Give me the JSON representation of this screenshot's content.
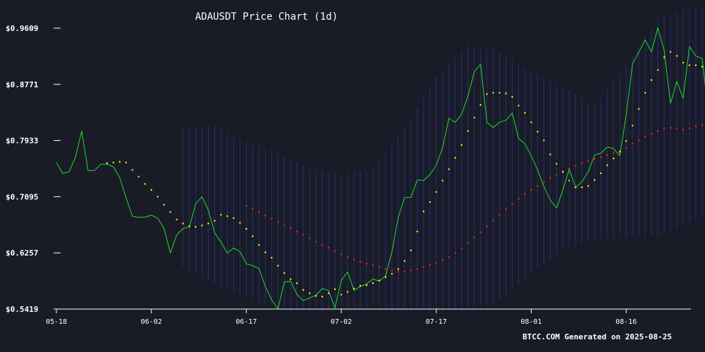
{
  "chart_data": {
    "type": "line",
    "title": "ADAUSDT Price Chart (1d)",
    "footer": "BTCC.COM Generated on 2025-08-25",
    "xlabel": "",
    "ylabel": "",
    "x_start": "05-18",
    "x_ticks": [
      {
        "label": "05-18",
        "index": 0
      },
      {
        "label": "06-02",
        "index": 15
      },
      {
        "label": "06-17",
        "index": 30
      },
      {
        "label": "07-02",
        "index": 45
      },
      {
        "label": "07-17",
        "index": 60
      },
      {
        "label": "08-01",
        "index": 75
      },
      {
        "label": "08-16",
        "index": 90
      }
    ],
    "y_ticks": [
      "$0.5419",
      "$0.6257",
      "$0.7095",
      "$0.7933",
      "$0.8771",
      "$0.9609"
    ],
    "ylim": [
      0.5419,
      0.9609
    ],
    "x_count": 100,
    "grid": false,
    "colors": {
      "background": "#191c27",
      "price": "#22dd22",
      "sar": "#ffff00",
      "ma": "#ff2222",
      "bands": "#2a2f8a"
    },
    "series": [
      {
        "key": "price",
        "values": [
          0.7605,
          0.744,
          0.747,
          0.768,
          0.8075,
          0.7485,
          0.7485,
          0.758,
          0.758,
          0.754,
          0.738,
          0.708,
          0.6805,
          0.6785,
          0.679,
          0.682,
          0.6775,
          0.662,
          0.6255,
          0.6525,
          0.662,
          0.6645,
          0.699,
          0.7095,
          0.6895,
          0.6555,
          0.6415,
          0.6255,
          0.633,
          0.6275,
          0.6095,
          0.6065,
          0.6025,
          0.5755,
          0.5555,
          0.5425,
          0.582,
          0.5835,
          0.5635,
          0.5545,
          0.5585,
          0.5625,
          0.5725,
          0.5695,
          0.5435,
          0.5845,
          0.5975,
          0.5695,
          0.5755,
          0.5795,
          0.5865,
          0.5835,
          0.5915,
          0.6275,
          0.6785,
          0.7085,
          0.7085,
          0.7345,
          0.7335,
          0.7425,
          0.7565,
          0.7825,
          0.8265,
          0.8205,
          0.8325,
          0.8595,
          0.8955,
          0.9075,
          0.8205,
          0.8125,
          0.8205,
          0.8235,
          0.8345,
          0.7965,
          0.7885,
          0.7705,
          0.7495,
          0.7245,
          0.7045,
          0.6925,
          0.7195,
          0.7505,
          0.7235,
          0.7315,
          0.7465,
          0.7715,
          0.7745,
          0.7835,
          0.7815,
          0.7705,
          0.8315,
          0.9075,
          0.9255,
          0.9435,
          0.9255,
          0.9615,
          0.9275,
          0.8485,
          0.8815,
          0.8565,
          0.9335,
          0.9195,
          0.9155,
          0.8345
        ]
      },
      {
        "key": "sar",
        "points": [
          [
            8,
            0.7595
          ],
          [
            9,
            0.7605
          ],
          [
            10,
            0.7615
          ],
          [
            11,
            0.7605
          ],
          [
            12,
            0.7495
          ],
          [
            13,
            0.7395
          ],
          [
            14,
            0.7285
          ],
          [
            15,
            0.7195
          ],
          [
            16,
            0.7095
          ],
          [
            17,
            0.6975
          ],
          [
            18,
            0.6865
          ],
          [
            19,
            0.6755
          ],
          [
            20,
            0.6695
          ],
          [
            21,
            0.6655
          ],
          [
            22,
            0.6645
          ],
          [
            23,
            0.6665
          ],
          [
            24,
            0.6695
          ],
          [
            25,
            0.6735
          ],
          [
            26,
            0.6825
          ],
          [
            27,
            0.6805
          ],
          [
            28,
            0.6775
          ],
          [
            29,
            0.6705
          ],
          [
            30,
            0.6615
          ],
          [
            31,
            0.6505
          ],
          [
            32,
            0.6375
          ],
          [
            33,
            0.6265
          ],
          [
            34,
            0.6185
          ],
          [
            35,
            0.6065
          ],
          [
            36,
            0.5955
          ],
          [
            37,
            0.5865
          ],
          [
            38,
            0.5805
          ],
          [
            39,
            0.5705
          ],
          [
            40,
            0.5655
          ],
          [
            41,
            0.5615
          ],
          [
            42,
            0.5605
          ],
          [
            43,
            0.5655
          ],
          [
            44,
            0.5715
          ],
          [
            45,
            0.5635
          ],
          [
            46,
            0.5675
          ],
          [
            47,
            0.5725
          ],
          [
            48,
            0.5765
          ],
          [
            49,
            0.5775
          ],
          [
            50,
            0.5805
          ],
          [
            51,
            0.5845
          ],
          [
            52,
            0.5895
          ],
          [
            53,
            0.5945
          ],
          [
            54,
            0.6015
          ],
          [
            55,
            0.6135
          ],
          [
            56,
            0.6295
          ],
          [
            57,
            0.6575
          ],
          [
            58,
            0.6875
          ],
          [
            59,
            0.7015
          ],
          [
            60,
            0.7165
          ],
          [
            61,
            0.7335
          ],
          [
            62,
            0.7505
          ],
          [
            63,
            0.7675
          ],
          [
            64,
            0.7865
          ],
          [
            65,
            0.8075
          ],
          [
            66,
            0.8275
          ],
          [
            67,
            0.8465
          ],
          [
            68,
            0.8625
          ],
          [
            69,
            0.8645
          ],
          [
            70,
            0.8645
          ],
          [
            71,
            0.8635
          ],
          [
            72,
            0.8585
          ],
          [
            73,
            0.8455
          ],
          [
            74,
            0.8345
          ],
          [
            75,
            0.8205
          ],
          [
            76,
            0.8065
          ],
          [
            77,
            0.7935
          ],
          [
            78,
            0.7725
          ],
          [
            79,
            0.7585
          ],
          [
            80,
            0.7465
          ],
          [
            81,
            0.7335
          ],
          [
            82,
            0.7235
          ],
          [
            83,
            0.7235
          ],
          [
            84,
            0.7255
          ],
          [
            85,
            0.7345
          ],
          [
            86,
            0.7445
          ],
          [
            87,
            0.7565
          ],
          [
            88,
            0.7665
          ],
          [
            89,
            0.7765
          ],
          [
            90,
            0.7925
          ],
          [
            91,
            0.8155
          ],
          [
            92,
            0.8405
          ],
          [
            93,
            0.8645
          ],
          [
            94,
            0.8835
          ],
          [
            95,
            0.8985
          ],
          [
            96,
            0.9175
          ],
          [
            97,
            0.9255
          ],
          [
            98,
            0.9195
          ],
          [
            99,
            0.9095
          ],
          [
            100,
            0.9055
          ],
          [
            101,
            0.9055
          ],
          [
            102,
            0.9035
          ],
          [
            103,
            0.8885
          ]
        ]
      },
      {
        "key": "ma",
        "points": [
          [
            30,
            0.6955
          ],
          [
            31,
            0.6915
          ],
          [
            32,
            0.6865
          ],
          [
            33,
            0.6815
          ],
          [
            34,
            0.6765
          ],
          [
            35,
            0.6715
          ],
          [
            36,
            0.6665
          ],
          [
            37,
            0.6625
          ],
          [
            38,
            0.6575
          ],
          [
            39,
            0.6525
          ],
          [
            40,
            0.6475
          ],
          [
            41,
            0.6425
          ],
          [
            42,
            0.6375
          ],
          [
            43,
            0.6335
          ],
          [
            44,
            0.6285
          ],
          [
            45,
            0.6235
          ],
          [
            46,
            0.6195
          ],
          [
            47,
            0.6155
          ],
          [
            48,
            0.6125
          ],
          [
            49,
            0.6095
          ],
          [
            50,
            0.6075
          ],
          [
            51,
            0.6045
          ],
          [
            52,
            0.6015
          ],
          [
            53,
            0.5995
          ],
          [
            54,
            0.5975
          ],
          [
            55,
            0.5975
          ],
          [
            56,
            0.5995
          ],
          [
            57,
            0.6015
          ],
          [
            58,
            0.6045
          ],
          [
            59,
            0.6075
          ],
          [
            60,
            0.6105
          ],
          [
            61,
            0.6145
          ],
          [
            62,
            0.6195
          ],
          [
            63,
            0.6255
          ],
          [
            64,
            0.6325
          ],
          [
            65,
            0.6405
          ],
          [
            66,
            0.6485
          ],
          [
            67,
            0.6565
          ],
          [
            68,
            0.6655
          ],
          [
            69,
            0.6735
          ],
          [
            70,
            0.6825
          ],
          [
            71,
            0.6905
          ],
          [
            72,
            0.6985
          ],
          [
            73,
            0.7065
          ],
          [
            74,
            0.7135
          ],
          [
            75,
            0.7195
          ],
          [
            76,
            0.7255
          ],
          [
            77,
            0.7315
          ],
          [
            78,
            0.7375
          ],
          [
            79,
            0.7425
          ],
          [
            80,
            0.7475
          ],
          [
            81,
            0.7515
          ],
          [
            82,
            0.7555
          ],
          [
            83,
            0.7595
          ],
          [
            84,
            0.7625
          ],
          [
            85,
            0.7655
          ],
          [
            86,
            0.7685
          ],
          [
            87,
            0.7715
          ],
          [
            88,
            0.7745
          ],
          [
            89,
            0.7775
          ],
          [
            90,
            0.7825
          ],
          [
            91,
            0.7885
          ],
          [
            92,
            0.7935
          ],
          [
            93,
            0.7995
          ],
          [
            94,
            0.8035
          ],
          [
            95,
            0.8075
          ],
          [
            96,
            0.8115
          ],
          [
            97,
            0.8125
          ],
          [
            98,
            0.8115
          ],
          [
            99,
            0.8095
          ],
          [
            100,
            0.8115
          ],
          [
            101,
            0.8145
          ],
          [
            102,
            0.8165
          ],
          [
            103,
            0.8185
          ],
          [
            104,
            0.8205
          ]
        ]
      },
      {
        "key": "bands",
        "points": [
          [
            20,
            0.812,
            0.605
          ],
          [
            25,
            0.815,
            0.58
          ],
          [
            30,
            0.79,
            0.56
          ],
          [
            35,
            0.775,
            0.545
          ],
          [
            40,
            0.752,
            0.535
          ],
          [
            45,
            0.742,
            0.538
          ],
          [
            50,
            0.752,
            0.545
          ],
          [
            55,
            0.812,
            0.525
          ],
          [
            60,
            0.89,
            0.515
          ],
          [
            65,
            0.935,
            0.54
          ],
          [
            70,
            0.925,
            0.555
          ],
          [
            75,
            0.895,
            0.595
          ],
          [
            80,
            0.875,
            0.63
          ],
          [
            85,
            0.845,
            0.645
          ],
          [
            90,
            0.905,
            0.65
          ],
          [
            95,
            0.975,
            0.65
          ],
          [
            100,
            0.99,
            0.67
          ],
          [
            104,
            0.99,
            0.69
          ]
        ]
      }
    ]
  }
}
